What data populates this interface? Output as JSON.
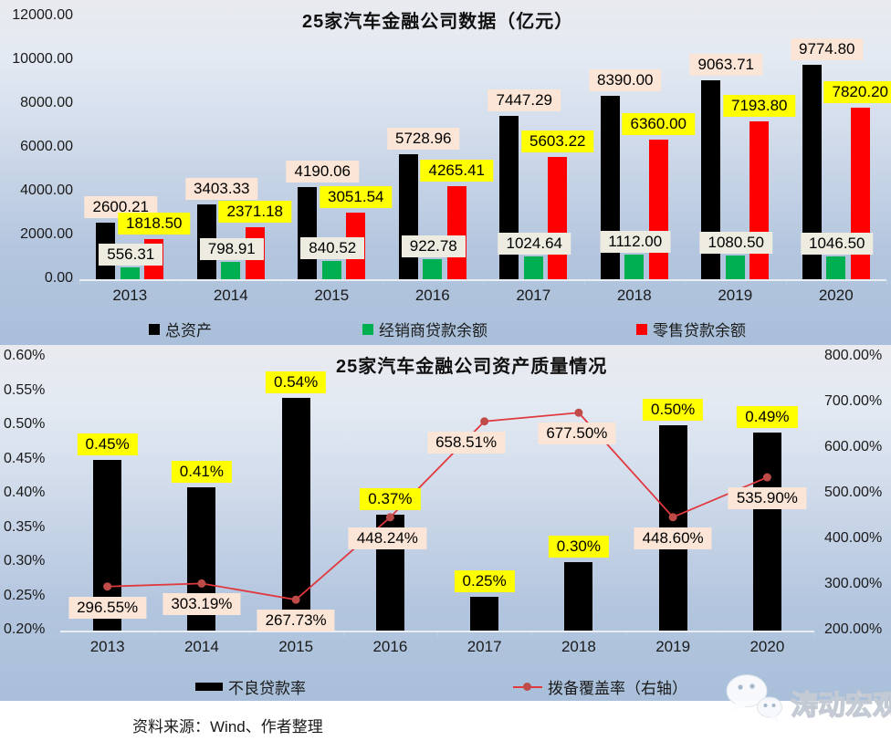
{
  "page": {
    "source_note": "资料来源：Wind、作者整理",
    "watermark": "涛动宏观"
  },
  "colors": {
    "total_assets": "#000000",
    "dealer_loans": "#00B050",
    "retail_loans": "#FE0000",
    "coverage_line": "#E0393E",
    "coverage_marker": "#BE4B48",
    "label_peach": "#FBE5D6",
    "label_yellow": "#FFFF00",
    "label_tan": "#EEECE1"
  },
  "chart_data": [
    {
      "type": "bar",
      "title": "25家汽车金融公司数据（亿元）",
      "categories": [
        "2013",
        "2014",
        "2015",
        "2016",
        "2017",
        "2018",
        "2019",
        "2020"
      ],
      "series": [
        {
          "name": "总资产",
          "color": "#000000",
          "label_bg": "#FBE5D6",
          "values": [
            2600.21,
            3403.33,
            4190.06,
            5728.96,
            7447.29,
            8390.0,
            9063.71,
            9774.8
          ],
          "labels": [
            "2600.21",
            "3403.33",
            "4190.06",
            "5728.96",
            "7447.29",
            "8390.00",
            "9063.71",
            "9774.80"
          ]
        },
        {
          "name": "经销商贷款余额",
          "color": "#00B050",
          "label_bg": "#EEECE1",
          "values": [
            556.31,
            798.91,
            840.52,
            922.78,
            1024.64,
            1112.0,
            1080.5,
            1046.5
          ],
          "labels": [
            "556.31",
            "798.91",
            "840.52",
            "922.78",
            "1024.64",
            "1112.00",
            "1080.50",
            "1046.50"
          ]
        },
        {
          "name": "零售贷款余额",
          "color": "#FE0000",
          "label_bg": "#FFFF00",
          "values": [
            1818.5,
            2371.18,
            3051.54,
            4265.41,
            5603.22,
            6360.0,
            7193.8,
            7820.2
          ],
          "labels": [
            "1818.50",
            "2371.18",
            "3051.54",
            "4265.41",
            "5603.22",
            "6360.00",
            "7193.80",
            "7820.20"
          ]
        }
      ],
      "ylim": [
        0,
        12000
      ],
      "y_ticks": [
        "0.00",
        "2000.00",
        "4000.00",
        "6000.00",
        "8000.00",
        "10000.00",
        "12000.00"
      ],
      "grid": false,
      "legend_position": "bottom"
    },
    {
      "type": "bar+line",
      "title": "25家汽车金融公司资产质量情况",
      "categories": [
        "2013",
        "2014",
        "2015",
        "2016",
        "2017",
        "2018",
        "2019",
        "2020"
      ],
      "bar_series": {
        "name": "不良贷款率",
        "axis": "left",
        "color": "#000000",
        "label_bg": "#FFFF00",
        "values": [
          0.45,
          0.41,
          0.54,
          0.37,
          0.25,
          0.3,
          0.5,
          0.49
        ],
        "labels": [
          "0.45%",
          "0.41%",
          "0.54%",
          "0.37%",
          "0.25%",
          "0.30%",
          "0.50%",
          "0.49%"
        ]
      },
      "line_series": {
        "name": "拨备覆盖率（右轴）",
        "axis": "right",
        "color": "#E0393E",
        "marker_color": "#BE4B48",
        "label_bg": "#FBE5D6",
        "values": [
          296.55,
          303.19,
          267.73,
          448.24,
          658.51,
          677.5,
          448.6,
          535.9
        ],
        "labels": [
          "296.55%",
          "303.19%",
          "267.73%",
          "448.24%",
          "658.51%",
          "677.50%",
          "448.60%",
          "535.90%"
        ]
      },
      "left_ylim": [
        0.2,
        0.6
      ],
      "left_ticks": [
        "0.20%",
        "0.25%",
        "0.30%",
        "0.35%",
        "0.40%",
        "0.45%",
        "0.50%",
        "0.55%",
        "0.60%"
      ],
      "right_ylim": [
        200,
        800
      ],
      "right_ticks": [
        "200.00%",
        "300.00%",
        "400.00%",
        "500.00%",
        "600.00%",
        "700.00%",
        "800.00%"
      ],
      "grid": false,
      "legend_position": "bottom"
    }
  ]
}
